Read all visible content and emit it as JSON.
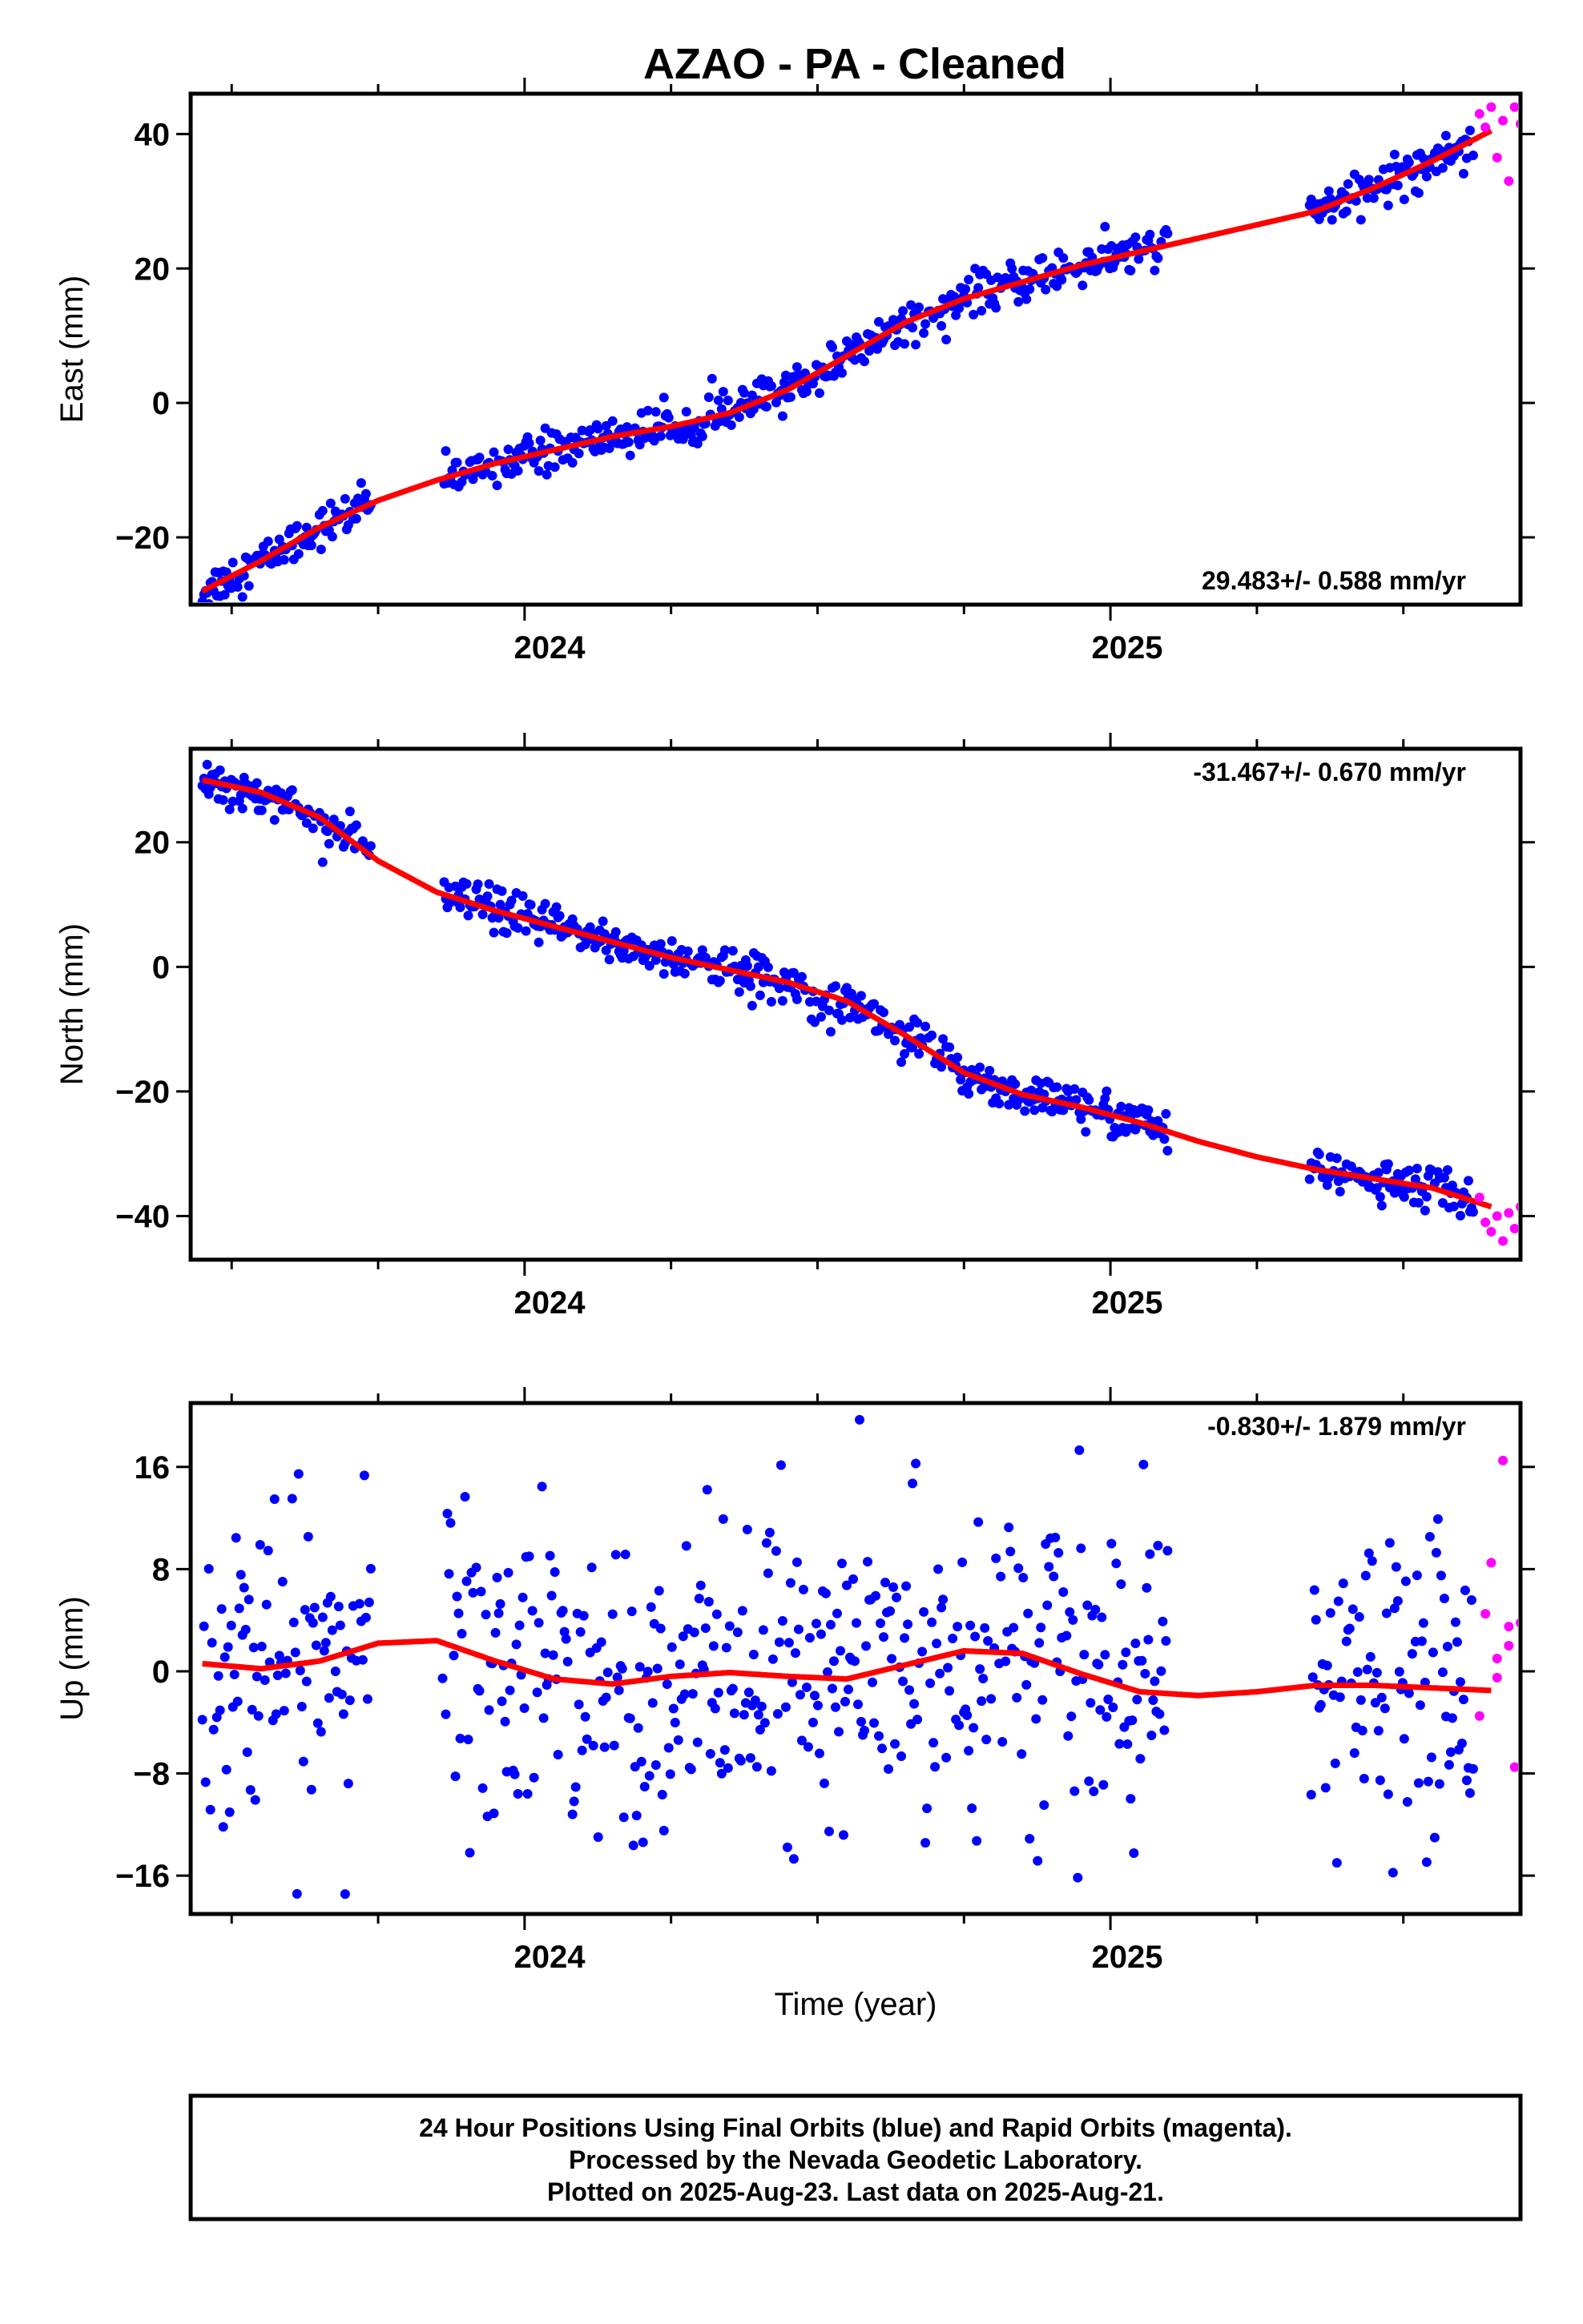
{
  "title": "AZAO  - PA - Cleaned",
  "colors": {
    "final": "#0000ff",
    "rapid": "#ff00ff",
    "fit": "#ff0000",
    "frame": "#000000"
  },
  "chart_data": [
    {
      "type": "scatter",
      "component": "east",
      "ylabel": "East (mm)",
      "xlabel": "",
      "ylim": [
        -30,
        46
      ],
      "xlim": [
        2023.43,
        2025.7
      ],
      "yticks": [
        -20,
        0,
        20,
        40
      ],
      "xticks": [
        "2024",
        "2025"
      ],
      "rate_text": "29.483+/- 0.588 mm/yr",
      "rate_position": "bottom-right",
      "fit": {
        "x": [
          2023.45,
          2023.55,
          2023.65,
          2023.75,
          2023.85,
          2023.95,
          2024.05,
          2024.15,
          2024.25,
          2024.35,
          2024.45,
          2024.55,
          2024.65,
          2024.75,
          2024.85,
          2024.95,
          2025.05,
          2025.15,
          2025.25,
          2025.35,
          2025.45,
          2025.55,
          2025.65
        ],
        "y": [
          -28,
          -23.5,
          -18.5,
          -14.5,
          -11.5,
          -9,
          -7,
          -5,
          -3.5,
          -1.5,
          2,
          7,
          12,
          15.5,
          18,
          20.5,
          22.5,
          24.5,
          26.5,
          28.5,
          32,
          36,
          40.5
        ]
      },
      "series": [
        {
          "name": "Final Orbits",
          "color": "#0000ff",
          "segments": [
            [
              2023.45,
              2023.74
            ],
            [
              2023.86,
              2025.1
            ],
            [
              2025.34,
              2025.62
            ]
          ],
          "scatter": 1.5
        },
        {
          "name": "Rapid Orbits",
          "color": "#ff00ff",
          "points": [
            [
              2025.63,
              43
            ],
            [
              2025.64,
              41
            ],
            [
              2025.65,
              44
            ],
            [
              2025.66,
              36.5
            ],
            [
              2025.67,
              42
            ],
            [
              2025.68,
              33
            ],
            [
              2025.69,
              44
            ],
            [
              2025.7,
              41.5
            ]
          ]
        }
      ]
    },
    {
      "type": "scatter",
      "component": "north",
      "ylabel": "North (mm)",
      "xlabel": "",
      "ylim": [
        -47,
        35
      ],
      "xlim": [
        2023.43,
        2025.7
      ],
      "yticks": [
        -40,
        -20,
        0,
        20
      ],
      "xticks": [
        "2024",
        "2025"
      ],
      "rate_text": "-31.467+/- 0.670 mm/yr",
      "rate_position": "top-right",
      "fit": {
        "x": [
          2023.45,
          2023.55,
          2023.65,
          2023.75,
          2023.85,
          2023.95,
          2024.05,
          2024.15,
          2024.25,
          2024.35,
          2024.45,
          2024.55,
          2024.65,
          2024.75,
          2024.85,
          2024.95,
          2025.05,
          2025.15,
          2025.25,
          2025.35,
          2025.45,
          2025.55,
          2025.65
        ],
        "y": [
          30,
          28,
          24,
          17,
          12,
          9,
          6.5,
          4,
          1.5,
          -0.5,
          -2.5,
          -5.5,
          -11,
          -17,
          -20.5,
          -22.5,
          -25,
          -28,
          -30.5,
          -32.5,
          -34,
          -35.5,
          -38.5
        ]
      },
      "series": [
        {
          "name": "Final Orbits",
          "color": "#0000ff",
          "segments": [
            [
              2023.45,
              2023.74
            ],
            [
              2023.86,
              2025.1
            ],
            [
              2025.34,
              2025.62
            ]
          ],
          "scatter": 1.7
        },
        {
          "name": "Rapid Orbits",
          "color": "#ff00ff",
          "points": [
            [
              2025.63,
              -37
            ],
            [
              2025.64,
              -41
            ],
            [
              2025.65,
              -42.5
            ],
            [
              2025.66,
              -40
            ],
            [
              2025.67,
              -44
            ],
            [
              2025.68,
              -39.5
            ],
            [
              2025.69,
              -42
            ],
            [
              2025.7,
              -38.5
            ]
          ]
        }
      ]
    },
    {
      "type": "scatter",
      "component": "up",
      "ylabel": "Up (mm)",
      "xlabel": "Time (year)",
      "ylim": [
        -19,
        21
      ],
      "xlim": [
        2023.43,
        2025.7
      ],
      "yticks": [
        -16,
        -8,
        0,
        8,
        16
      ],
      "xticks": [
        "2024",
        "2025"
      ],
      "rate_text": "-0.830+/- 1.879 mm/yr",
      "rate_position": "top-right",
      "fit": {
        "x": [
          2023.45,
          2023.55,
          2023.65,
          2023.75,
          2023.85,
          2023.95,
          2024.05,
          2024.15,
          2024.25,
          2024.35,
          2024.45,
          2024.55,
          2024.65,
          2024.75,
          2024.85,
          2024.95,
          2025.05,
          2025.15,
          2025.25,
          2025.35,
          2025.45,
          2025.55,
          2025.65
        ],
        "y": [
          0.6,
          0.2,
          0.8,
          2.2,
          2.4,
          0.8,
          -0.6,
          -1.0,
          -0.4,
          -0.1,
          -0.4,
          -0.6,
          0.5,
          1.6,
          1.4,
          -0.2,
          -1.6,
          -1.9,
          -1.6,
          -1.1,
          -1.1,
          -1.3,
          -1.5
        ]
      },
      "series": [
        {
          "name": "Final Orbits",
          "color": "#0000ff",
          "segments": [
            [
              2023.45,
              2023.74
            ],
            [
              2023.86,
              2025.1
            ],
            [
              2025.34,
              2025.62
            ]
          ],
          "scatter": 6.0
        },
        {
          "name": "Rapid Orbits",
          "color": "#ff00ff",
          "points": [
            [
              2025.63,
              -3.5
            ],
            [
              2025.64,
              4.5
            ],
            [
              2025.65,
              8.5
            ],
            [
              2025.66,
              1.0
            ],
            [
              2025.67,
              16.5
            ],
            [
              2025.68,
              3.5
            ],
            [
              2025.69,
              -7.5
            ],
            [
              2025.7,
              3.8
            ],
            [
              2025.66,
              -0.5
            ],
            [
              2025.68,
              2.0
            ]
          ]
        }
      ]
    }
  ],
  "footer": {
    "line1": "24 Hour Positions Using Final Orbits (blue) and Rapid Orbits (magenta).",
    "line2": "Processed by the Nevada Geodetic Laboratory.",
    "line3": "Plotted on 2025-Aug-23. Last data on 2025-Aug-21."
  }
}
